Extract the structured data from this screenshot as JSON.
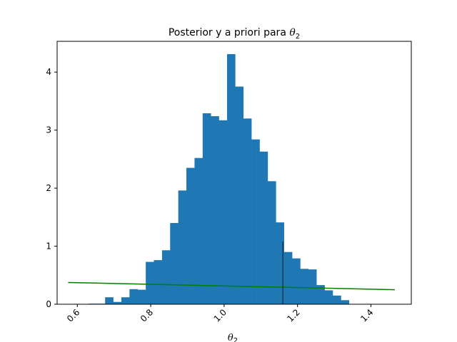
{
  "chart_data": {
    "type": "bar",
    "title": "Posterior y a priori para",
    "title_symbol": "θ",
    "title_subscript": "2",
    "xlabel_symbol": "θ",
    "xlabel_subscript": "2",
    "ylabel": "",
    "xlim": [
      0.545,
      1.51
    ],
    "ylim": [
      0,
      4.53
    ],
    "xticks": [
      0.6,
      0.8,
      1.0,
      1.2,
      1.4
    ],
    "xtick_labels": [
      "0.6",
      "0.8",
      "1.0",
      "1.2",
      "1.4"
    ],
    "xtick_rotation": -45,
    "yticks": [
      0,
      1,
      2,
      3,
      4
    ],
    "ytick_labels": [
      "0",
      "1",
      "2",
      "3",
      "4"
    ],
    "grid": false,
    "legend": "none",
    "series": [
      {
        "type": "histogram",
        "color": "#1f77b4",
        "bin_edges": [
          0.6314,
          0.6536,
          0.6757,
          0.6979,
          0.72,
          0.7422,
          0.7643,
          0.7865,
          0.8086,
          0.8308,
          0.8529,
          0.8751,
          0.8972,
          0.9194,
          0.9415,
          0.9637,
          0.9858,
          1.008,
          1.0301,
          1.0523,
          1.0744,
          1.0966,
          1.1187,
          1.1409,
          1.163,
          1.1852,
          1.2073,
          1.2295,
          1.2516,
          1.2738,
          1.2959,
          1.3181,
          1.3402
        ],
        "values": [
          0.01,
          0.01,
          0.12,
          0.04,
          0.12,
          0.26,
          0.25,
          0.73,
          0.76,
          0.93,
          1.4,
          1.96,
          2.35,
          2.52,
          3.29,
          3.24,
          3.17,
          4.31,
          3.75,
          3.2,
          2.84,
          2.63,
          2.12,
          1.41,
          0.9,
          0.79,
          0.61,
          0.6,
          0.33,
          0.24,
          0.15,
          0.07
        ]
      },
      {
        "type": "line",
        "color": "#008000",
        "x": [
          0.575,
          1.465
        ],
        "y": [
          0.375,
          0.25
        ]
      },
      {
        "type": "vline",
        "color": "#000000",
        "x": 1.16,
        "y": [
          0,
          1.08
        ]
      }
    ]
  }
}
